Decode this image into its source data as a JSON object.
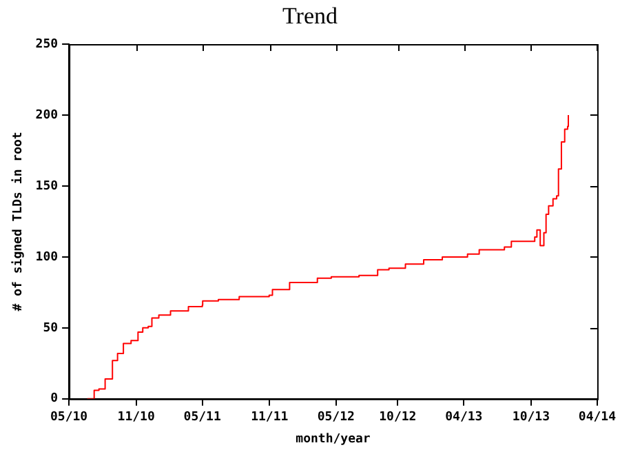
{
  "chart_data": {
    "type": "step",
    "title": "Trend",
    "xlabel": "month/year",
    "ylabel": "# of signed TLDs in root",
    "x": [
      "2010-07-04",
      "2010-07-23",
      "2010-08-05",
      "2010-08-22",
      "2010-09-10",
      "2010-09-11",
      "2010-09-25",
      "2010-10-11",
      "2010-11-01",
      "2010-11-20",
      "2010-12-03",
      "2010-12-18",
      "2010-12-28",
      "2011-01-16",
      "2011-02-17",
      "2011-03-25",
      "2011-04-07",
      "2011-05-15",
      "2011-05-16",
      "2011-06-28",
      "2011-08-24",
      "2011-11-14",
      "2011-11-23",
      "2012-01-09",
      "2012-02-26",
      "2012-03-25",
      "2012-05-02",
      "2012-07-17",
      "2012-09-06",
      "2012-10-07",
      "2012-11-21",
      "2013-01-10",
      "2013-03-02",
      "2013-05-10",
      "2013-06-11",
      "2013-08-19",
      "2013-09-07",
      "2013-10-22",
      "2013-11-10",
      "2013-11-16",
      "2013-11-23",
      "2013-11-25",
      "2013-12-01",
      "2013-12-05",
      "2013-12-11",
      "2013-12-18",
      "2013-12-30",
      "2014-01-09",
      "2014-01-14",
      "2014-01-22",
      "2014-01-31",
      "2014-02-08",
      "2014-02-10"
    ],
    "series": [
      {
        "color": "#ff0000",
        "values": [
          0,
          6,
          7,
          14,
          14,
          27,
          32,
          39,
          41,
          47,
          50,
          51,
          57,
          59,
          62,
          62,
          65,
          66,
          69,
          70,
          72,
          73,
          77,
          82,
          82,
          85,
          86,
          87,
          91,
          92,
          95,
          98,
          100,
          102,
          105,
          107,
          111,
          111,
          114,
          119,
          119,
          108,
          108,
          117,
          130,
          136,
          141,
          143,
          162,
          181,
          190,
          192,
          200
        ]
      }
    ],
    "xlim": [
      "2010-05-15",
      "2014-04-30"
    ],
    "xticks": [
      {
        "value": "2010-05-15",
        "label": "05/10"
      },
      {
        "value": "2010-11-15",
        "label": "11/10"
      },
      {
        "value": "2011-05-15",
        "label": "05/11"
      },
      {
        "value": "2011-11-15",
        "label": "11/11"
      },
      {
        "value": "2012-05-15",
        "label": "05/12"
      },
      {
        "value": "2012-10-31",
        "label": "10/12"
      },
      {
        "value": "2013-04-30",
        "label": "04/13"
      },
      {
        "value": "2013-10-31",
        "label": "10/13"
      },
      {
        "value": "2014-04-30",
        "label": "04/14"
      }
    ],
    "ylim": [
      0,
      250
    ],
    "yticks": [
      0,
      50,
      100,
      150,
      200,
      250
    ],
    "grid": false,
    "legend": false,
    "marker": "none",
    "line_style": "solid"
  }
}
